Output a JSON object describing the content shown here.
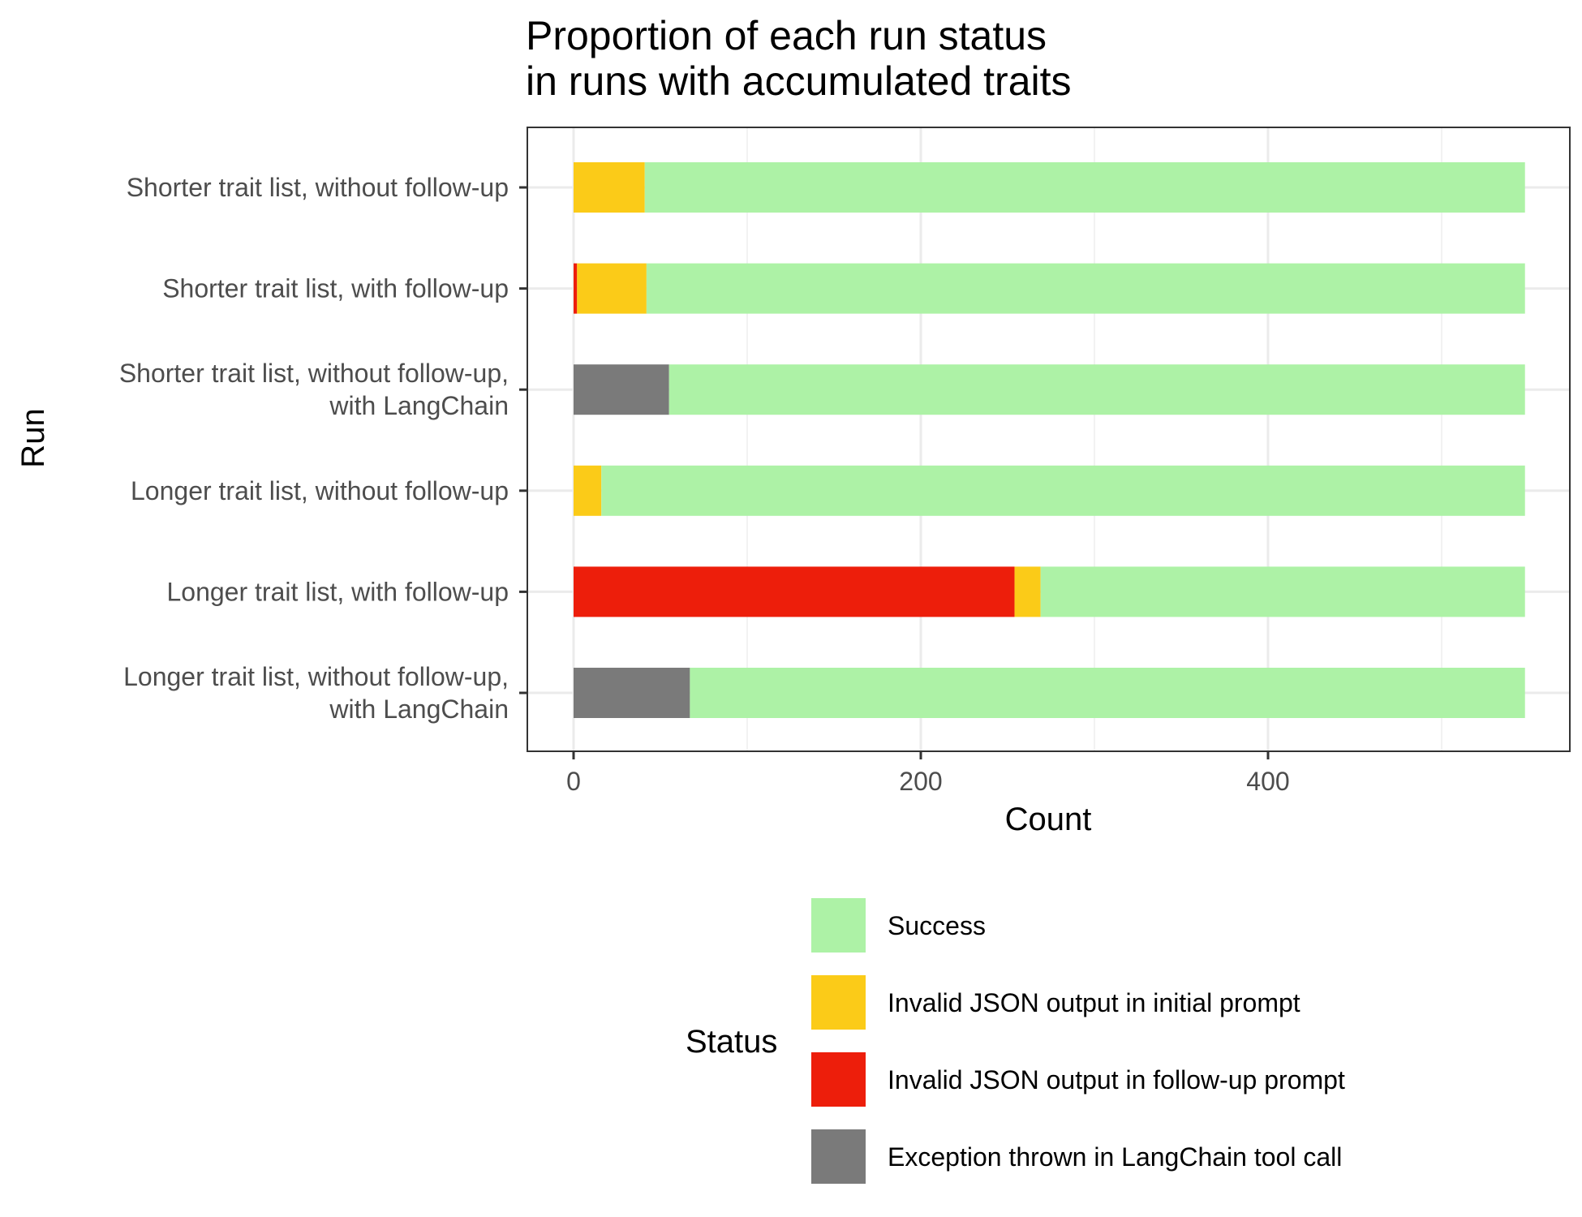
{
  "chart_data": {
    "type": "bar",
    "orientation": "horizontal",
    "stacked": true,
    "title": "Proportion of each run status\nin runs with accumulated traits",
    "xlabel": "Count",
    "ylabel": "Run",
    "xlim": [
      -27,
      575
    ],
    "xticks": [
      0,
      200,
      400
    ],
    "grid": true,
    "legend_position": "bottom",
    "categories": [
      "Shorter trait list, without follow-up",
      "Shorter trait list, with follow-up",
      "Shorter trait list, without follow-up,\nwith LangChain",
      "Longer trait list, without follow-up",
      "Longer trait list, with follow-up",
      "Longer trait list, without follow-up,\nwith LangChain"
    ],
    "series": [
      {
        "name": "Invalid JSON output in follow-up prompt",
        "color": "#ed1e0b",
        "values": [
          0,
          2,
          0,
          0,
          254,
          0
        ]
      },
      {
        "name": "Exception thrown in LangChain tool call",
        "color": "#7a7a7a",
        "values": [
          0,
          0,
          55,
          0,
          0,
          67
        ]
      },
      {
        "name": "Invalid JSON output in initial prompt",
        "color": "#fbcb18",
        "values": [
          41,
          40,
          0,
          16,
          15,
          0
        ]
      },
      {
        "name": "Success",
        "color": "#adf2a6",
        "values": [
          507,
          506,
          493,
          532,
          279,
          481
        ]
      }
    ],
    "legend": {
      "title": "Status",
      "order": [
        "Success",
        "Invalid JSON output in initial prompt",
        "Invalid JSON output in follow-up prompt",
        "Exception thrown in LangChain tool call"
      ]
    }
  }
}
